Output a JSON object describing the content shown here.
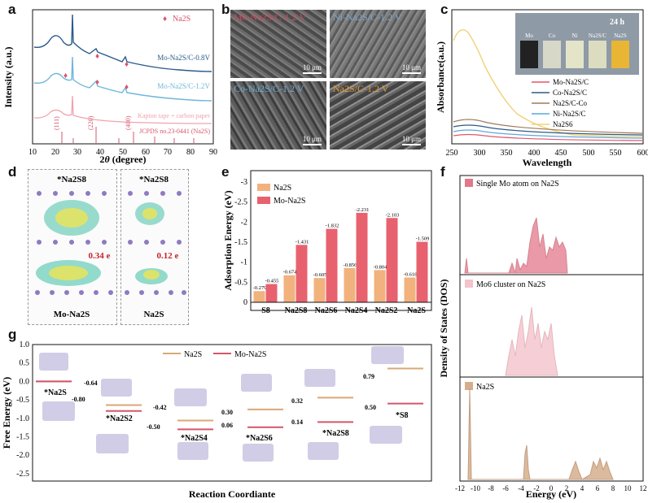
{
  "panels": {
    "a": "a",
    "b": "b",
    "c": "c",
    "d": "d",
    "e": "e",
    "f": "f",
    "g": "g"
  },
  "panel_a": {
    "ylabel": "Intensity (a.u.)",
    "xlabel_pre": "2",
    "xlabel_theta": "θ",
    "xlabel_post": " (degree)",
    "legend_marker": "♦",
    "legend_text": "Na2S",
    "curves": [
      {
        "label": "Mo-Na2S/C-0.8V",
        "color": "#2b5a8c"
      },
      {
        "label": "Mo-Na2S/C-1.2V",
        "color": "#6fb7d9"
      },
      {
        "label": "Kapton tape + carbon paper",
        "color": "#f0a3ae"
      }
    ],
    "ref_label": "JCPDS no.23-0441 (Na2S)",
    "peaks": [
      {
        "hkl": "(111)",
        "pos": 23.4
      },
      {
        "hkl": "(220)",
        "pos": 38.9
      },
      {
        "hkl": "(400)",
        "pos": 55.6
      }
    ],
    "xticks": [
      "10",
      "20",
      "30",
      "40",
      "50",
      "60",
      "70",
      "80",
      "90"
    ]
  },
  "panel_b": {
    "images": [
      {
        "label": "Mo-Na2S/C-1.2 V",
        "color": "#d04a5c",
        "scale": "10 μm"
      },
      {
        "label": "Ni-Na2S/C-1.2 V",
        "color": "#7da6c8",
        "scale": "10 μm"
      },
      {
        "label": "Co-Na2S/C-1.2 V",
        "color": "#6aaed6",
        "scale": "10 μm"
      },
      {
        "label": "Na2S/C-1.2 V",
        "color": "#e59a3a",
        "scale": "10 μm"
      }
    ]
  },
  "panel_c": {
    "ylabel": "Absorbance(a.u.)",
    "xlabel": "Wavelength",
    "inset_time": "24 h",
    "vial_labels": [
      "Mo",
      "Co",
      "Ni",
      "Na2S/C",
      "Na2S"
    ],
    "legend": [
      {
        "label": "Mo-Na2S/C",
        "color": "#e2576b"
      },
      {
        "label": "Co-Na2S/C",
        "color": "#2e5a86"
      },
      {
        "label": "Na2S/C-Co",
        "color": "#a07a58"
      },
      {
        "label": "Ni-Na2S/C",
        "color": "#5aa9dc"
      },
      {
        "label": "Na2S6",
        "color": "#f0d27a"
      }
    ],
    "xticks": [
      "250",
      "300",
      "350",
      "400",
      "450",
      "500",
      "550",
      "600"
    ]
  },
  "panel_d": {
    "left_title": "*Na2S8",
    "right_title": "*Na2S8",
    "left_charge": "0.34 e",
    "right_charge": "0.12 e",
    "left_label": "Mo-Na2S",
    "right_label": "Na2S"
  },
  "panel_e": {
    "ylabel": "Adsorption Energy (eV)",
    "legend": [
      {
        "label": "Na2S",
        "color": "#f2b27d"
      },
      {
        "label": "Mo-Na2S",
        "color": "#e8616f"
      }
    ],
    "yticks": [
      "0",
      "-0.5",
      "-1",
      "-1.5",
      "-2",
      "-2.5",
      "-3"
    ],
    "chart_data": {
      "type": "bar",
      "categories": [
        "S8",
        "Na2S8",
        "Na2S6",
        "Na2S4",
        "Na2S2",
        "Na2S"
      ],
      "series": [
        {
          "name": "Na2S",
          "values": [
            -0.279,
            -0.674,
            -0.605,
            -0.856,
            -0.804,
            -0.618
          ],
          "labels": [
            "-0.279",
            "-0.674",
            "-0.605",
            "-0.856",
            "-0.804",
            "-0.618"
          ]
        },
        {
          "name": "Mo-Na2S",
          "values": [
            -0.455,
            -1.431,
            -1.832,
            -2.231,
            -2.103,
            -1.509
          ],
          "labels": [
            "-0.455",
            "-1.431",
            "-1.832",
            "-2.231",
            "-2.103",
            "-1.509"
          ]
        }
      ],
      "ylim": [
        0,
        -3
      ],
      "ylabel": "Adsorption Energy (eV)"
    }
  },
  "panel_f": {
    "ylabel": "Density of States (DOS)",
    "xlabel": "Energy (eV)",
    "rows": [
      {
        "label": "Single Mo atom on Na2S",
        "color": "#e2788a"
      },
      {
        "label": "Mo6 cluster on Na2S",
        "color": "#f3c4cb"
      },
      {
        "label": "Na2S",
        "color": "#d6ae8c"
      }
    ],
    "xticks": [
      "-12",
      "-10",
      "-8",
      "-6",
      "-4",
      "-2",
      "0",
      "2",
      "4",
      "6",
      "8",
      "10",
      "12"
    ]
  },
  "panel_g": {
    "ylabel": "Free Energy (eV)",
    "xlabel": "Reaction Coordiante",
    "legend": [
      {
        "label": "Na2S",
        "color": "#d9a877"
      },
      {
        "label": "Mo-Na2S",
        "color": "#d4566c"
      }
    ],
    "yticks": [
      "1.0",
      "0.5",
      "0.0",
      "-0.5",
      "-1.0",
      "-1.5",
      "-2.0",
      "-2.5"
    ],
    "species": [
      "*Na2S",
      "*Na2S2",
      "*Na2S4",
      "*Na2S6",
      "*Na2S8",
      "*S8"
    ],
    "chart_data": {
      "type": "line",
      "categories": [
        "*Na2S",
        "*Na2S2",
        "*Na2S4",
        "*Na2S6",
        "*Na2S8",
        "*S8"
      ],
      "series": [
        {
          "name": "Na2S",
          "values": [
            0.0,
            -0.64,
            -1.06,
            -0.76,
            -0.44,
            0.35
          ]
        },
        {
          "name": "Mo-Na2S",
          "values": [
            0.0,
            -0.8,
            -1.3,
            -1.24,
            -1.1,
            -0.6
          ]
        }
      ],
      "step_labels": [
        "-0.64",
        "-0.80",
        "-0.42",
        "-0.50",
        "0.30",
        "0.06",
        "0.32",
        "0.14",
        "0.79",
        "0.50"
      ],
      "ylim": [
        -2.7,
        1.0
      ]
    }
  }
}
